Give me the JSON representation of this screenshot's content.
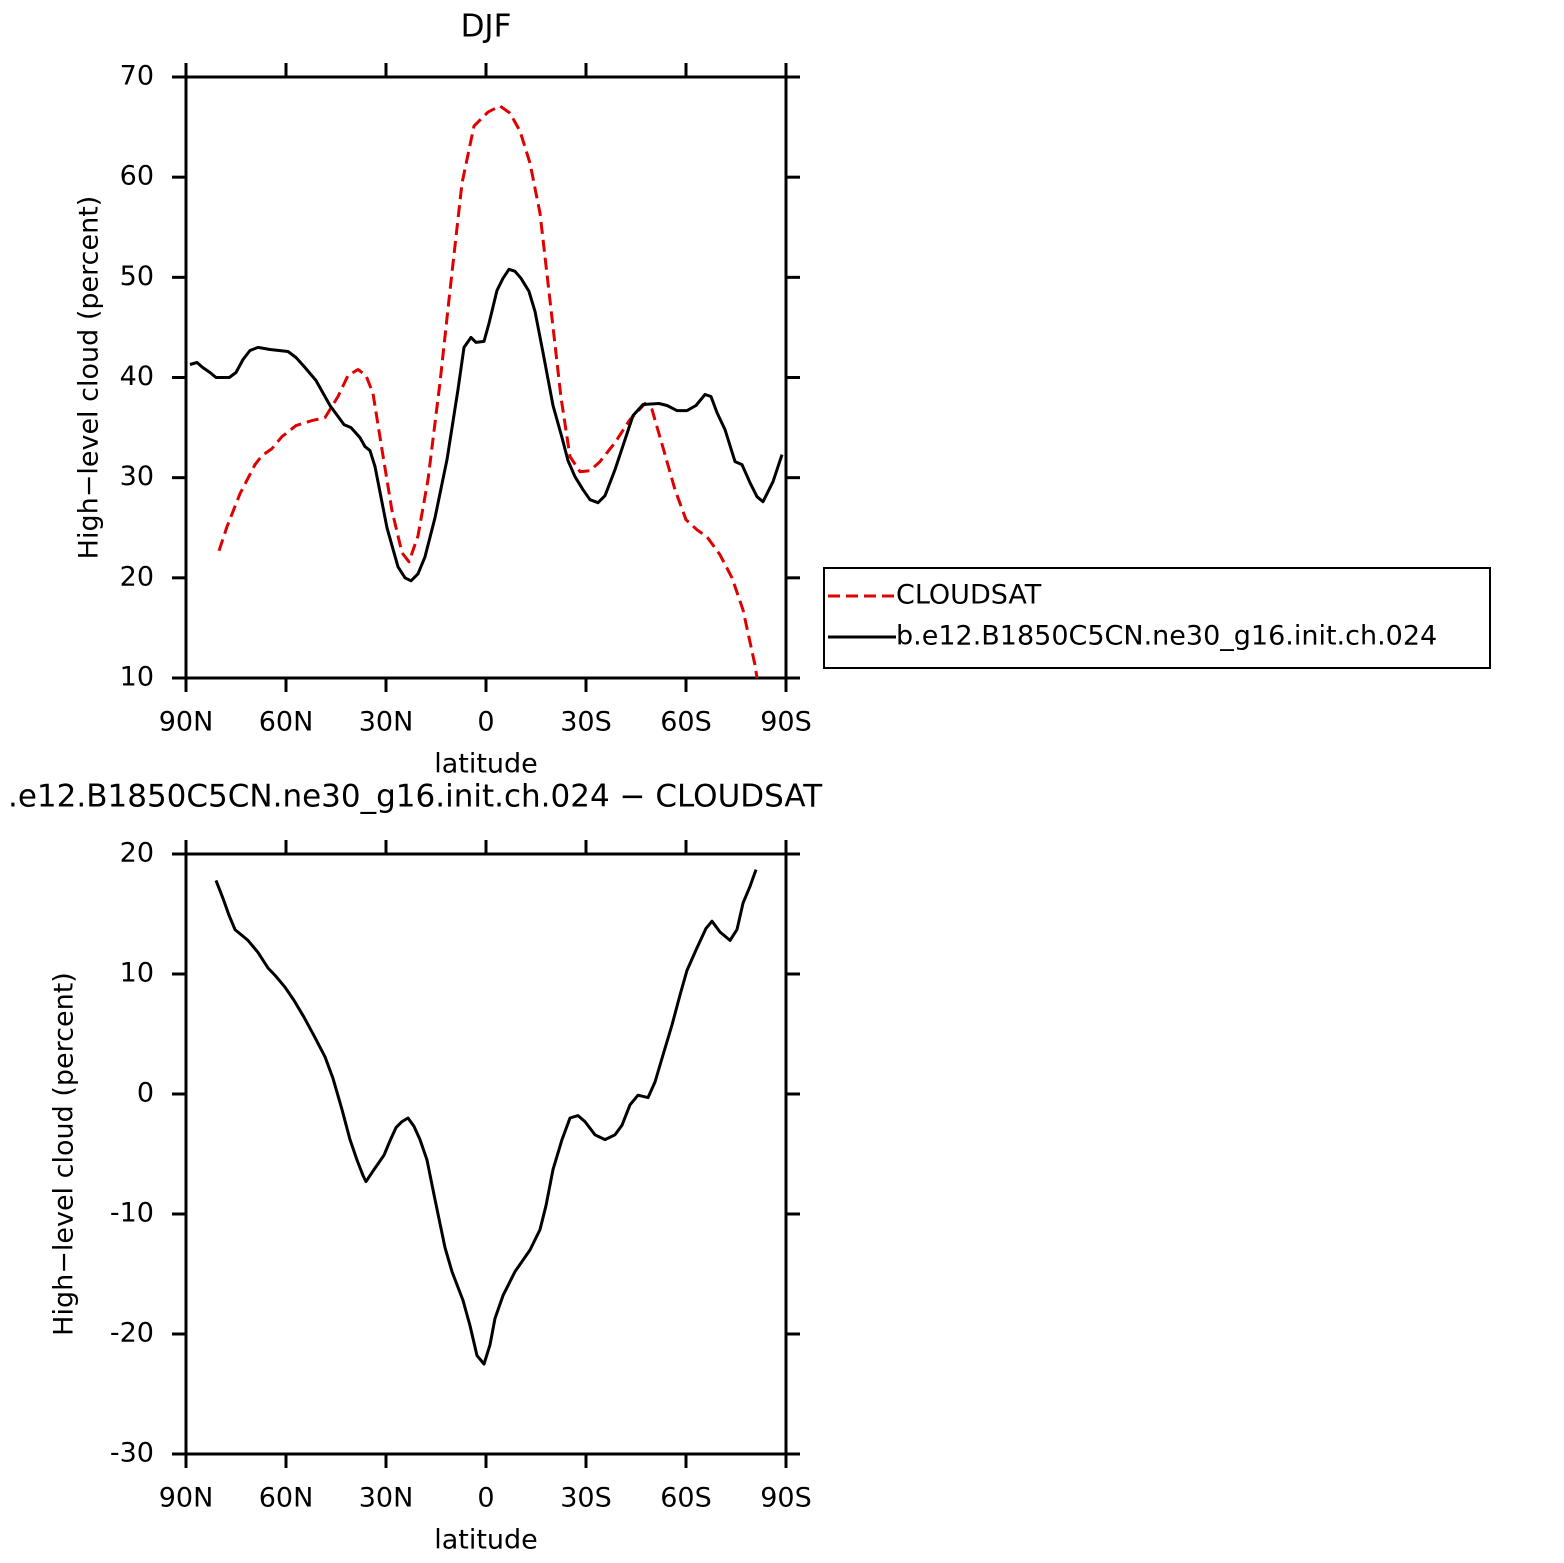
{
  "chart_data": [
    {
      "type": "line",
      "title": "DJF",
      "xlabel": "latitude",
      "ylabel": "High−level cloud (percent)",
      "xlim": [
        90,
        -90
      ],
      "xticks": [
        {
          "value": 90,
          "label": "90N"
        },
        {
          "value": 60,
          "label": "60N"
        },
        {
          "value": 30,
          "label": "30N"
        },
        0,
        {
          "value": -30,
          "label": "30S"
        },
        {
          "value": -60,
          "label": "60S"
        },
        {
          "value": -90,
          "label": "90S"
        }
      ],
      "ylim": [
        10,
        70
      ],
      "yticks": [
        10,
        20,
        30,
        40,
        50,
        60,
        70
      ],
      "legend": "right",
      "series": [
        {
          "name": "CLOUDSAT",
          "color": "#e00000",
          "dash": true,
          "x": [
            80.1,
            77.7,
            73.8,
            69.3,
            67.2,
            64.2,
            61.2,
            57,
            52.2,
            48.3,
            44.4,
            41.4,
            38.4,
            36,
            33.9,
            31.2,
            28.2,
            25.2,
            23.1,
            20.4,
            17.4,
            13.8,
            10.8,
            7.2,
            3.6,
            -0.6,
            -4.2,
            -7.2,
            -10.2,
            -13.2,
            -16.2,
            -19.2,
            -22.5,
            -25.2,
            -28.2,
            -31.2,
            -34.2,
            -38.7,
            -43.2,
            -47.7,
            -49.8,
            -53.1,
            -56.7,
            -60,
            -63.3,
            -66.3,
            -70.2,
            -73.8,
            -77.1,
            -80.7,
            -81.3
          ],
          "values": [
            22.7,
            25.1,
            28.4,
            31.3,
            32.2,
            32.9,
            34.1,
            35.2,
            35.7,
            36,
            38.1,
            40.2,
            40.8,
            40.2,
            38.4,
            32.8,
            26.7,
            22.5,
            21.6,
            24.2,
            29.8,
            39.5,
            48.7,
            59.4,
            65.1,
            66.5,
            67.1,
            66.4,
            64.6,
            61.4,
            56.4,
            47.7,
            38,
            32.1,
            30.6,
            30.7,
            31.6,
            33.5,
            35.8,
            37.4,
            36.8,
            33,
            28.8,
            25.8,
            24.8,
            24.1,
            22.3,
            20,
            16.8,
            11.3,
            10
          ]
        },
        {
          "name": "b.e12.B1850C5CN.ne30_g16.init.ch.024",
          "color": "#000000",
          "dash": false,
          "x": [
            88.8,
            86.7,
            85,
            82.8,
            81,
            77,
            75,
            72.9,
            70.8,
            68.4,
            64.8,
            59.4,
            57,
            54.3,
            51,
            46.8,
            42.6,
            40.5,
            37.8,
            36.3,
            34.8,
            33.3,
            29.7,
            26.4,
            24.3,
            22.5,
            20.4,
            18.3,
            15.3,
            11.7,
            8.4,
            6.6,
            4.5,
            3,
            0.6,
            -0.9,
            -3.3,
            -5.1,
            -6.9,
            -8.7,
            -10.5,
            -12.9,
            -14.7,
            -17.1,
            -20.1,
            -22.8,
            -24.6,
            -26.7,
            -29.1,
            -31.2,
            -33.6,
            -35.7,
            -38.7,
            -41.7,
            -44.1,
            -47.1,
            -51.9,
            -54.3,
            -57.3,
            -60.3,
            -63,
            -65.7,
            -67.5,
            -69.3,
            -71.7,
            -74.7,
            -76.8,
            -79.2,
            -81.3,
            -83.1,
            -86.1,
            -88.8
          ],
          "values": [
            41.3,
            41.5,
            41,
            40.5,
            40,
            40,
            40.5,
            41.8,
            42.7,
            43,
            42.8,
            42.6,
            42,
            41,
            39.7,
            37.2,
            35.3,
            35,
            34,
            33.1,
            32.7,
            31.1,
            25,
            21.1,
            20,
            19.7,
            20.4,
            22.1,
            26,
            31.8,
            38.8,
            43,
            44,
            43.5,
            43.6,
            45.4,
            48.7,
            49.9,
            50.8,
            50.6,
            49.9,
            48.6,
            46.6,
            42.5,
            37.2,
            34,
            31.7,
            30.1,
            28.8,
            27.8,
            27.5,
            28.2,
            30.8,
            33.8,
            36.2,
            37.3,
            37.4,
            37.2,
            36.7,
            36.7,
            37.2,
            38.3,
            38.1,
            36.5,
            34.8,
            31.6,
            31.3,
            29.5,
            28.1,
            27.6,
            29.6,
            32.3
          ]
        }
      ]
    },
    {
      "type": "line",
      "title": ".e12.B1850C5CN.ne30_g16.init.ch.024 − CLOUDSAT",
      "xlabel": "latitude",
      "ylabel": "High−level cloud (percent)",
      "xlim": [
        90,
        -90
      ],
      "xticks": [
        {
          "value": 90,
          "label": "90N"
        },
        {
          "value": 60,
          "label": "60N"
        },
        {
          "value": 30,
          "label": "30N"
        },
        0,
        {
          "value": -30,
          "label": "30S"
        },
        {
          "value": -60,
          "label": "60S"
        },
        {
          "value": -90,
          "label": "90S"
        }
      ],
      "ylim": [
        -30,
        20
      ],
      "yticks": [
        -30,
        -20,
        -10,
        0,
        10,
        20
      ],
      "series": [
        {
          "color": "#000000",
          "dash": false,
          "x": [
            81,
            78.9,
            77.1,
            75.3,
            71.4,
            68.4,
            65.4,
            63,
            60.3,
            57.6,
            54.6,
            51.3,
            48.3,
            45.9,
            43.2,
            40.8,
            38.7,
            36.9,
            36,
            33.6,
            30.6,
            28.8,
            27,
            25.2,
            23.4,
            21.6,
            19.8,
            17.7,
            15.3,
            12.3,
            10.2,
            6.9,
            4.8,
            2.7,
            0.6,
            -1.2,
            -2.7,
            -5.1,
            -8.7,
            -13.2,
            -16.2,
            -18,
            -20.1,
            -22.8,
            -25.2,
            -27.6,
            -29.7,
            -32.7,
            -35.7,
            -38.7,
            -40.8,
            -43.2,
            -45.6,
            -48.6,
            -50.7,
            -53.1,
            -55.8,
            -58.2,
            -60.3,
            -63,
            -66,
            -67.8,
            -70.2,
            -73.2,
            -75.3,
            -77.1,
            -79.2,
            -81
          ],
          "values": [
            17.8,
            16.3,
            14.9,
            13.7,
            12.8,
            11.8,
            10.5,
            9.8,
            8.9,
            7.8,
            6.4,
            4.7,
            3.1,
            1.3,
            -1.3,
            -3.8,
            -5.5,
            -6.8,
            -7.3,
            -6.3,
            -5.1,
            -3.9,
            -2.8,
            -2.3,
            -2,
            -2.7,
            -3.8,
            -5.5,
            -8.8,
            -12.8,
            -14.8,
            -17.2,
            -19.3,
            -21.8,
            -22.5,
            -20.9,
            -18.7,
            -16.8,
            -14.8,
            -13,
            -11.3,
            -9.3,
            -6.3,
            -3.8,
            -2,
            -1.8,
            -2.3,
            -3.4,
            -3.8,
            -3.4,
            -2.6,
            -0.9,
            -0.1,
            -0.3,
            1,
            3.25,
            5.75,
            8.25,
            10.3,
            12,
            13.8,
            14.4,
            13.5,
            12.8,
            13.7,
            15.9,
            17.3,
            18.7
          ]
        }
      ]
    }
  ]
}
